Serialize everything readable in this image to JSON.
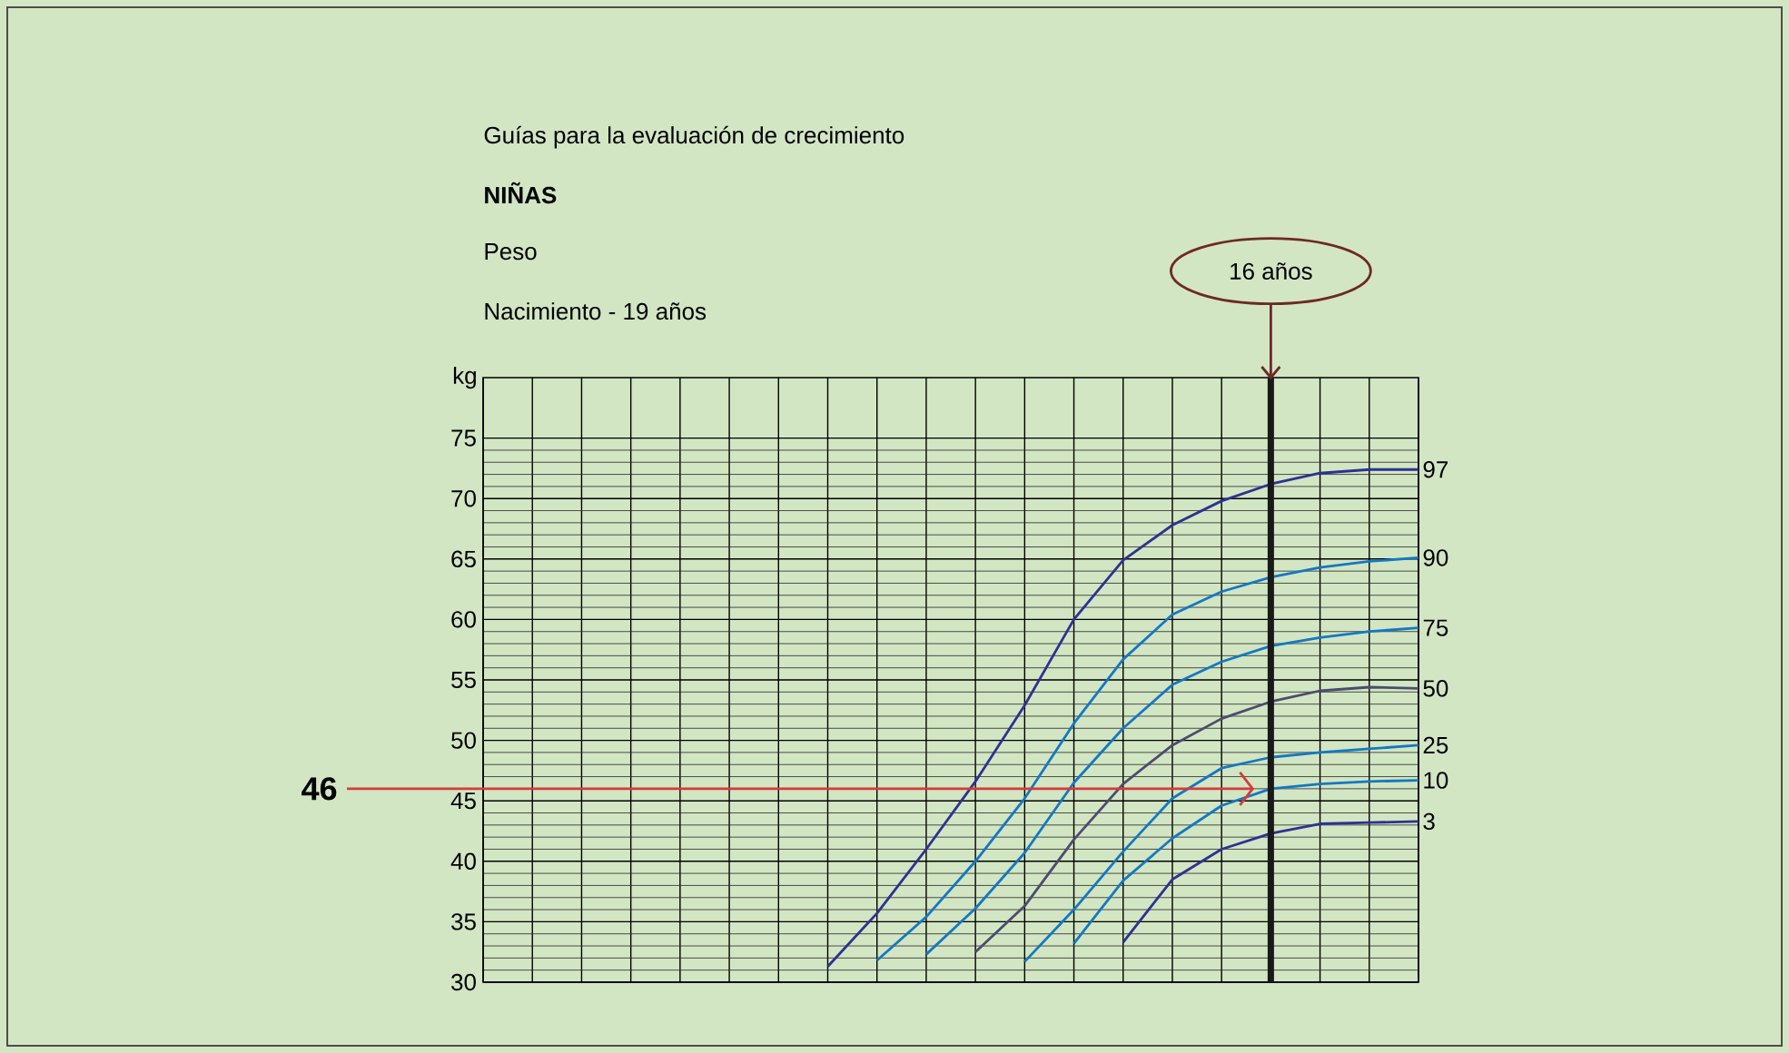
{
  "chart_data": {
    "type": "line",
    "title": "Guías para la evaluación de crecimiento",
    "subtitle": "NIÑAS",
    "ylabel": "kg",
    "annotations": [
      "Peso",
      "Nacimiento - 19 años",
      "16 años"
    ],
    "categories": [
      null,
      null,
      null,
      null,
      null,
      null,
      null,
      null,
      null,
      null,
      null,
      null,
      null,
      null,
      null,
      null,
      null,
      null,
      null,
      null
    ],
    "ylim": [
      30,
      80
    ],
    "yticks": [
      30,
      35,
      40,
      45,
      50,
      55,
      60,
      65,
      70,
      75
    ],
    "grid": true,
    "legend": false,
    "tick_labels": "y",
    "marker": "none",
    "line_style": "solid",
    "ref_lines": [
      {
        "axis": "y",
        "value": 46,
        "label": "46",
        "color": "#d63a3a"
      }
    ],
    "series": [
      {
        "name": "97",
        "color": "#2e3192",
        "values": [
          null,
          null,
          null,
          null,
          null,
          null,
          null,
          31.3,
          35.7,
          41.0,
          46.6,
          52.9,
          60.0,
          64.9,
          67.8,
          69.8,
          71.2,
          72.1,
          72.4,
          72.4
        ]
      },
      {
        "name": "90",
        "color": "#1478c3",
        "values": [
          null,
          null,
          null,
          null,
          null,
          null,
          null,
          null,
          31.8,
          35.4,
          40.0,
          45.2,
          51.4,
          56.7,
          60.4,
          62.3,
          63.5,
          64.3,
          64.8,
          65.1
        ]
      },
      {
        "name": "75",
        "color": "#1478c3",
        "values": [
          null,
          null,
          null,
          null,
          null,
          null,
          null,
          null,
          null,
          32.3,
          36.1,
          40.7,
          46.5,
          51.0,
          54.6,
          56.5,
          57.8,
          58.5,
          59.0,
          59.3
        ]
      },
      {
        "name": "50",
        "color": "#4d4b6e",
        "values": [
          null,
          null,
          null,
          null,
          null,
          null,
          null,
          null,
          null,
          null,
          32.5,
          36.3,
          41.8,
          46.4,
          49.6,
          51.8,
          53.2,
          54.1,
          54.4,
          54.3
        ]
      },
      {
        "name": "25",
        "color": "#1478c3",
        "values": [
          null,
          null,
          null,
          null,
          null,
          null,
          null,
          null,
          null,
          null,
          null,
          31.7,
          36.0,
          40.8,
          45.2,
          47.7,
          48.6,
          49.0,
          49.3,
          49.6
        ]
      },
      {
        "name": "10",
        "color": "#1478c3",
        "values": [
          null,
          null,
          null,
          null,
          null,
          null,
          null,
          null,
          null,
          null,
          null,
          null,
          33.2,
          38.4,
          41.9,
          44.6,
          46.0,
          46.4,
          46.6,
          46.7
        ]
      },
      {
        "name": "3",
        "color": "#2e3192",
        "values": [
          null,
          null,
          null,
          null,
          null,
          null,
          null,
          null,
          null,
          null,
          null,
          null,
          null,
          33.3,
          38.5,
          41.0,
          42.3,
          43.1,
          43.2,
          43.3
        ]
      }
    ]
  }
}
